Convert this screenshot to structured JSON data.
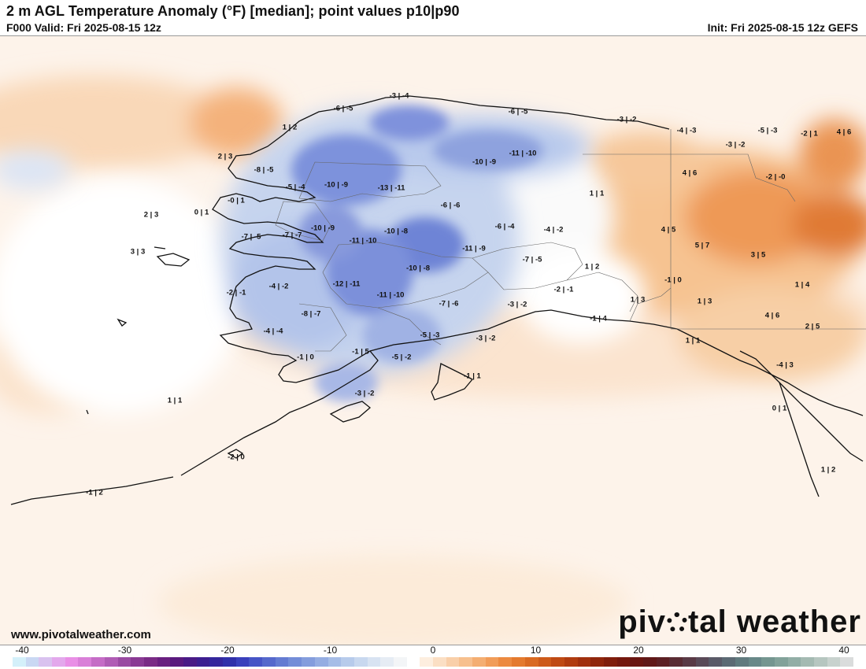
{
  "title": "2 m AGL Temperature Anomaly (°F) [median]; point values p10|p90",
  "valid": "F000 Valid: Fri 2025-08-15 12z",
  "init": "Init: Fri 2025-08-15 12z GEFS",
  "website": "www.pivotalweather.com",
  "logo": {
    "before": "piv",
    "after": "tal weather"
  },
  "colorbar": {
    "ticks": [
      "-40",
      "-30",
      "-20",
      "-10",
      "0",
      "10",
      "20",
      "30",
      "40"
    ],
    "colors": [
      "#d4f0fa",
      "#c9d8f3",
      "#d9c2ef",
      "#e3a8ec",
      "#e98fe6",
      "#d97fd8",
      "#c56cc6",
      "#b05cb5",
      "#9a4aa2",
      "#8a3a94",
      "#7a2b86",
      "#6a2080",
      "#5a1a7e",
      "#4a1a86",
      "#3d1e90",
      "#34269c",
      "#3030aa",
      "#3a40bc",
      "#4654c6",
      "#5568cc",
      "#647bd2",
      "#738dd8",
      "#849ddd",
      "#95ade2",
      "#a6bde7",
      "#b7cbeb",
      "#c8d8ef",
      "#d8e3f2",
      "#e6ecf4",
      "#f3f5f7",
      "#ffffff",
      "#fdeedf",
      "#fbdfc4",
      "#f9cfa9",
      "#f7c08e",
      "#f4ae72",
      "#f19c58",
      "#ec8a40",
      "#e47a2e",
      "#d96a22",
      "#cd5a1a",
      "#bf4a14",
      "#b03c10",
      "#a0300e",
      "#90260c",
      "#801e0c",
      "#74180e",
      "#6a1612",
      "#601818",
      "#5c2024",
      "#5a2c34",
      "#5a3a46",
      "#5a4a58",
      "#5a5a68",
      "#5c6a74",
      "#607a7e",
      "#688888",
      "#749690",
      "#82a29a",
      "#92aea6",
      "#a4bab2",
      "#b6c6c0",
      "#c8d2ce",
      "#dadcdc"
    ]
  },
  "point_values": [
    {
      "t": "-3 | -4"
    },
    {
      "t": "-6 | -5"
    },
    {
      "t": "-6 | -5"
    },
    {
      "t": "-3 | -2"
    },
    {
      "t": "-4 | -3"
    },
    {
      "t": "-5 | -3"
    },
    {
      "t": "-2 | 1"
    },
    {
      "t": "4 | 6"
    },
    {
      "t": "1 | 2"
    },
    {
      "t": "-3 | -2"
    },
    {
      "t": "2 | 3"
    },
    {
      "t": "-8 | -5"
    },
    {
      "t": "-10 | -9"
    },
    {
      "t": "-11 | -10"
    },
    {
      "t": "4 | 6"
    },
    {
      "t": "-2 | -0"
    },
    {
      "t": "-5 | -4"
    },
    {
      "t": "-10 | -9"
    },
    {
      "t": "-13 | -11"
    },
    {
      "t": "1 | 1"
    },
    {
      "t": "-0 | 1"
    },
    {
      "t": "-6 | -6"
    },
    {
      "t": "2 | 3"
    },
    {
      "t": "0 | 1"
    },
    {
      "t": "-6 | -4"
    },
    {
      "t": "-4 | -2"
    },
    {
      "t": "4 | 5"
    },
    {
      "t": "-7 | -5"
    },
    {
      "t": "-7 | -7"
    },
    {
      "t": "-10 | -9"
    },
    {
      "t": "-10 | -8"
    },
    {
      "t": "-11 | -10"
    },
    {
      "t": "5 | 7"
    },
    {
      "t": "3 | 3"
    },
    {
      "t": "-11 | -9"
    },
    {
      "t": "3 | 5"
    },
    {
      "t": "-7 | -5"
    },
    {
      "t": "1 | 2"
    },
    {
      "t": "-10 | -8"
    },
    {
      "t": "-1 | 0"
    },
    {
      "t": "-4 | -2"
    },
    {
      "t": "-12 | -11"
    },
    {
      "t": "1 | 4"
    },
    {
      "t": "-2 | -1"
    },
    {
      "t": "-2 | -1"
    },
    {
      "t": "-11 | -10"
    },
    {
      "t": "1 | 3"
    },
    {
      "t": "1 | 3"
    },
    {
      "t": "-7 | -6"
    },
    {
      "t": "-3 | -2"
    },
    {
      "t": "-8 | -7"
    },
    {
      "t": "4 | 6"
    },
    {
      "t": "-1 | 4"
    },
    {
      "t": "2 | 5"
    },
    {
      "t": "-4 | -4"
    },
    {
      "t": "-5 | -3"
    },
    {
      "t": "-3 | -2"
    },
    {
      "t": "1 | 1"
    },
    {
      "t": "-4 | 3"
    },
    {
      "t": "-1 | 0"
    },
    {
      "t": "-5 | -2"
    },
    {
      "t": "-1 | 5"
    },
    {
      "t": "-1 | 1"
    },
    {
      "t": "-3 | -2"
    },
    {
      "t": "1 | 1"
    },
    {
      "t": "0 | 1"
    },
    {
      "t": "-2 | 0"
    },
    {
      "t": "1 | 2"
    },
    {
      "t": "-1 | 2"
    }
  ]
}
